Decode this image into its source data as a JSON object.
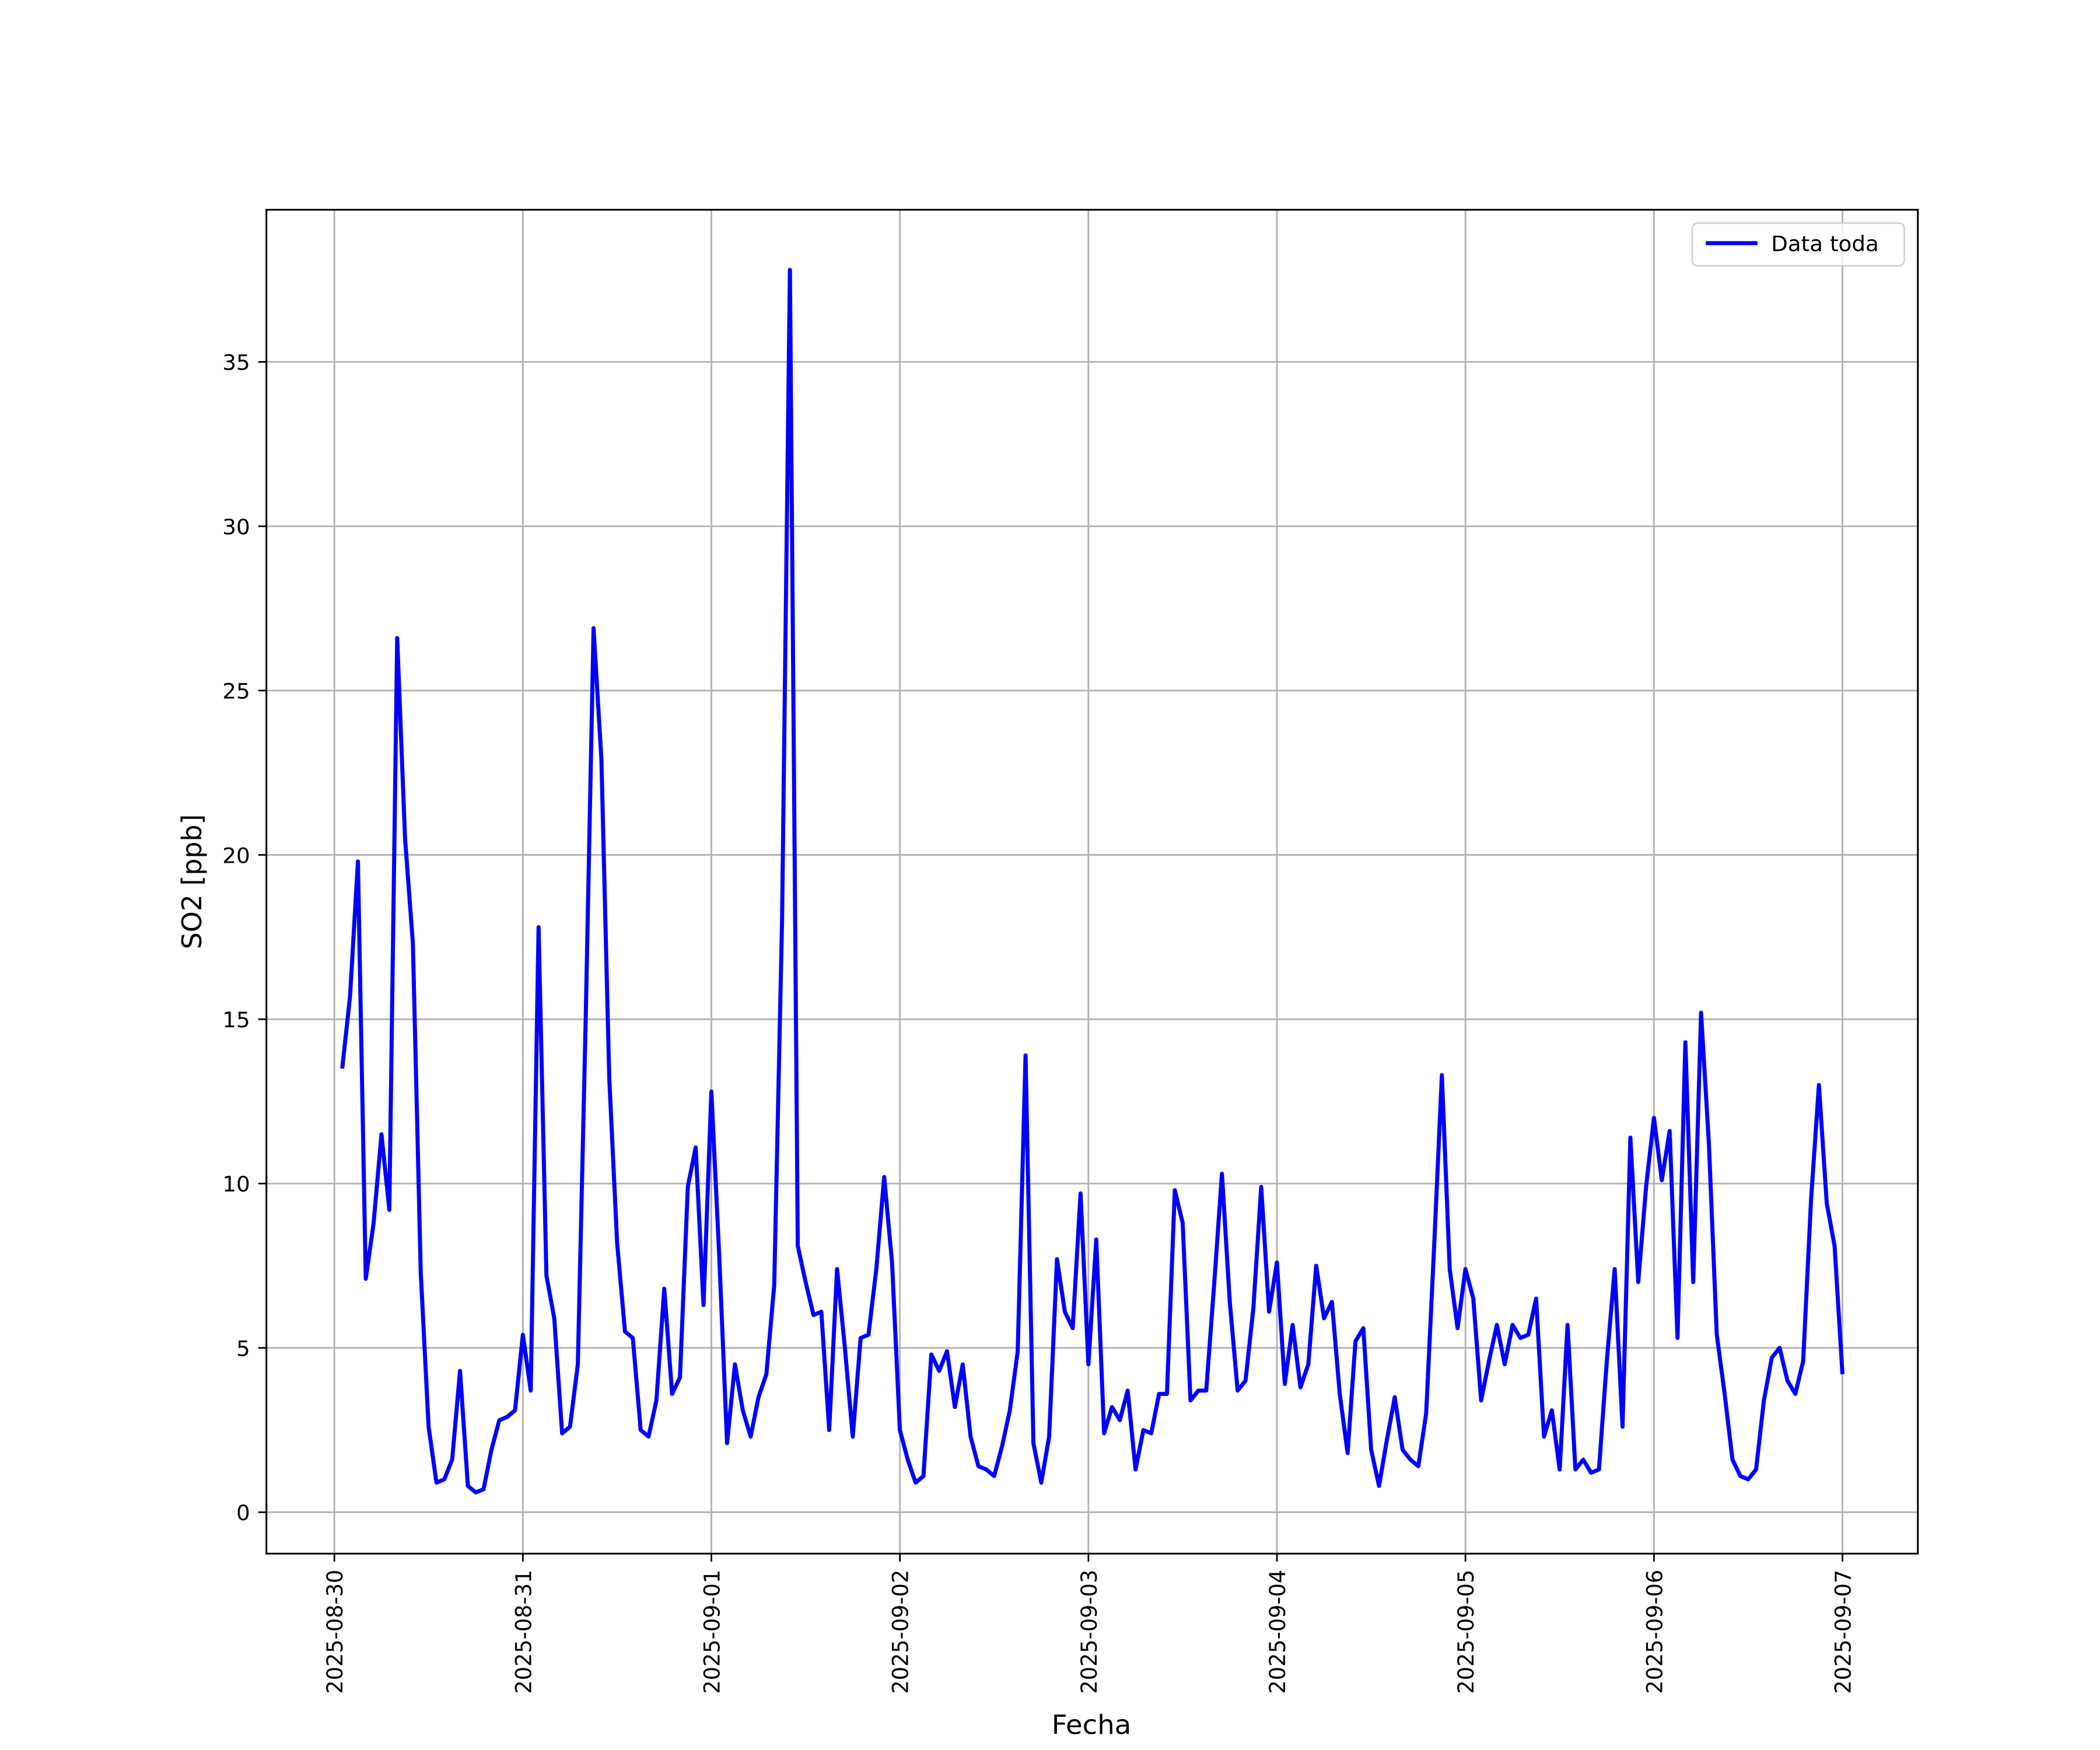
{
  "chart_data": {
    "type": "line",
    "xlabel": "Fecha",
    "ylabel": "SO2 [ppb]",
    "x": [
      1,
      2,
      3,
      4,
      5,
      6,
      7,
      8,
      9,
      10,
      11,
      12,
      13,
      14,
      15,
      16,
      17,
      18,
      19,
      20,
      21,
      22,
      23,
      24,
      25,
      26,
      27,
      28,
      29,
      30,
      31,
      32,
      33,
      34,
      35,
      36,
      37,
      38,
      39,
      40,
      41,
      42,
      43,
      44,
      45,
      46,
      47,
      48,
      49,
      50,
      51,
      52,
      53,
      54,
      55,
      56,
      57,
      58,
      59,
      60,
      61,
      62,
      63,
      64,
      65,
      66,
      67,
      68,
      69,
      70,
      71,
      72,
      73,
      74,
      75,
      76,
      77,
      78,
      79,
      80,
      81,
      82,
      83,
      84,
      85,
      86,
      87,
      88,
      89,
      90,
      91,
      92,
      93,
      94,
      95,
      96,
      97,
      98,
      99,
      100,
      101,
      102,
      103,
      104,
      105,
      106,
      107,
      108,
      109,
      110,
      111,
      112,
      113,
      114,
      115,
      116,
      117,
      118,
      119,
      120,
      121,
      122,
      123,
      124,
      125,
      126,
      127,
      128,
      129,
      130,
      131,
      132,
      133,
      134,
      135,
      136,
      137,
      138,
      139,
      140,
      141,
      142,
      143,
      144,
      145,
      146,
      147,
      148,
      149,
      150,
      151,
      152,
      153,
      154,
      155,
      156,
      157,
      158,
      159,
      160,
      161,
      162,
      163,
      164,
      165,
      166,
      167,
      168,
      169,
      170,
      171,
      172,
      173,
      174,
      175,
      176,
      177,
      178,
      179,
      180,
      181,
      182,
      183,
      184,
      185,
      186,
      187,
      188,
      189,
      190,
      191,
      192
    ],
    "series": [
      {
        "name": "Data toda",
        "color": "#0000ff",
        "values": [
          13.5,
          15.7,
          19.8,
          7.1,
          8.8,
          11.5,
          9.2,
          26.6,
          20.5,
          17.3,
          7.3,
          2.6,
          0.9,
          1.0,
          1.6,
          4.3,
          0.8,
          0.6,
          0.7,
          1.9,
          2.8,
          2.9,
          3.1,
          5.4,
          3.7,
          17.8,
          7.2,
          5.9,
          2.4,
          2.6,
          4.5,
          15.0,
          26.9,
          22.9,
          13.2,
          8.2,
          5.5,
          5.3,
          2.5,
          2.3,
          3.4,
          6.8,
          3.6,
          4.1,
          9.9,
          11.1,
          6.3,
          12.8,
          7.8,
          2.1,
          4.5,
          3.1,
          2.3,
          3.5,
          4.2,
          6.9,
          18.0,
          37.8,
          8.1,
          7.0,
          6.0,
          6.1,
          2.5,
          7.4,
          5.0,
          2.3,
          5.3,
          5.4,
          7.4,
          10.2,
          7.6,
          2.5,
          1.6,
          0.9,
          1.1,
          4.8,
          4.3,
          4.9,
          3.2,
          4.5,
          2.3,
          1.4,
          1.3,
          1.1,
          2.0,
          3.1,
          4.9,
          13.9,
          2.1,
          0.9,
          2.3,
          7.7,
          6.1,
          5.6,
          9.7,
          4.5,
          8.3,
          2.4,
          3.2,
          2.8,
          3.7,
          1.3,
          2.5,
          2.4,
          3.6,
          3.6,
          9.8,
          8.8,
          3.4,
          3.7,
          3.7,
          6.9,
          10.3,
          6.4,
          3.7,
          4.0,
          6.2,
          9.9,
          6.1,
          7.6,
          3.9,
          5.7,
          3.8,
          4.5,
          7.5,
          5.9,
          6.4,
          3.6,
          1.8,
          5.2,
          5.6,
          1.9,
          0.8,
          2.2,
          3.5,
          1.9,
          1.6,
          1.4,
          3.0,
          8.0,
          13.3,
          7.4,
          5.6,
          7.4,
          6.5,
          3.4,
          4.6,
          5.7,
          4.5,
          5.7,
          5.3,
          5.4,
          6.5,
          2.3,
          3.1,
          1.3,
          5.7,
          1.3,
          1.6,
          1.2,
          1.3,
          4.6,
          7.4,
          2.6,
          11.4,
          7.0,
          9.9,
          12.0,
          10.1,
          11.6,
          5.3,
          14.3,
          7.0,
          15.2,
          11.2,
          5.4,
          3.6,
          1.6,
          1.1,
          1.0,
          1.3,
          3.4,
          4.7,
          5.0,
          4.0,
          3.6,
          4.6,
          9.5,
          13.0,
          9.4,
          8.1,
          4.2
        ]
      }
    ],
    "xlim": [
      -8.65,
      201.6
    ],
    "xticks": [
      {
        "value": 0,
        "label": "2025-08-30"
      },
      {
        "value": 24,
        "label": "2025-08-31"
      },
      {
        "value": 48,
        "label": "2025-09-01"
      },
      {
        "value": 72,
        "label": "2025-09-02"
      },
      {
        "value": 96,
        "label": "2025-09-03"
      },
      {
        "value": 120,
        "label": "2025-09-04"
      },
      {
        "value": 144,
        "label": "2025-09-05"
      },
      {
        "value": 168,
        "label": "2025-09-06"
      },
      {
        "value": 192,
        "label": "2025-09-07"
      }
    ],
    "ylim": [
      -1.26,
      39.63
    ],
    "yticks": [
      0,
      5,
      10,
      15,
      20,
      25,
      30,
      35
    ],
    "grid": true,
    "legend": "upper right"
  }
}
